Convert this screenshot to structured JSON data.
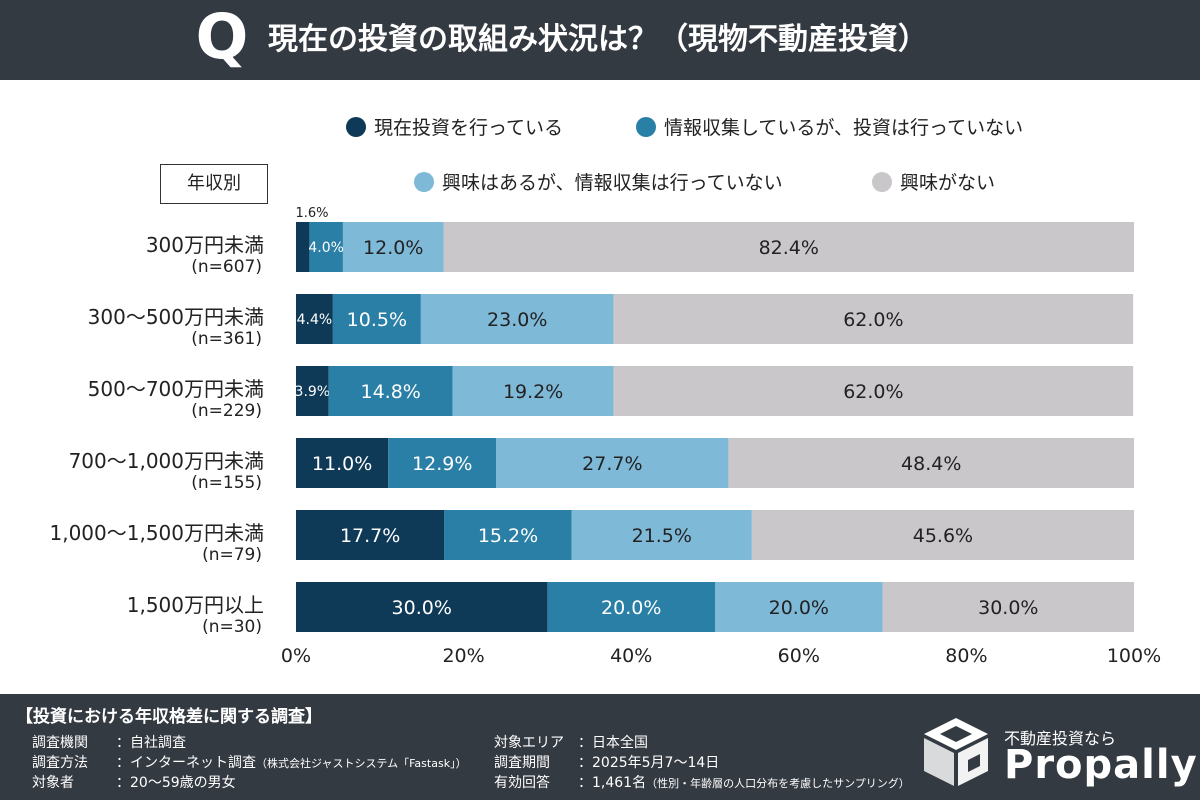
{
  "header": {
    "q_mark": "Q",
    "title": "現在の投資の取組み状況は？（現物不動産投資）"
  },
  "group_label": "年収別",
  "chart_data": {
    "type": "bar",
    "orientation": "horizontal",
    "stacked": true,
    "stacked_to": 100,
    "categories": [
      {
        "label": "300万円未満",
        "n": "(n=607)"
      },
      {
        "label": "300〜500万円未満",
        "n": "(n=361)"
      },
      {
        "label": "500〜700万円未満",
        "n": "(n=229)"
      },
      {
        "label": "700〜1,000万円未満",
        "n": "(n=155)"
      },
      {
        "label": "1,000〜1,500万円未満",
        "n": "(n=79)"
      },
      {
        "label": "1,500万円以上",
        "n": "(n=30)"
      }
    ],
    "series": [
      {
        "name": "現在投資を行っている",
        "color": "#0f3a57",
        "values": [
          1.6,
          4.4,
          3.9,
          11.0,
          17.7,
          30.0
        ],
        "labels": [
          "1.6%",
          "4.4%",
          "3.9%",
          "11.0%",
          "17.7%",
          "30.0%"
        ]
      },
      {
        "name": "情報収集しているが、投資は行っていない",
        "color": "#2a7fa6",
        "values": [
          4.0,
          10.5,
          14.8,
          12.9,
          15.2,
          20.0
        ],
        "labels": [
          "4.0%",
          "10.5%",
          "14.8%",
          "12.9%",
          "15.2%",
          "20.0%"
        ]
      },
      {
        "name": "興味はあるが、情報収集は行っていない",
        "color": "#7fb9d8",
        "values": [
          12.0,
          23.0,
          19.2,
          27.7,
          21.5,
          20.0
        ],
        "labels": [
          "12.0%",
          "23.0%",
          "19.2%",
          "27.7%",
          "21.5%",
          "20.0%"
        ]
      },
      {
        "name": "興味がない",
        "color": "#cac7cb",
        "values": [
          82.4,
          62.0,
          62.0,
          48.4,
          45.6,
          30.0
        ],
        "labels": [
          "82.4%",
          "62.0%",
          "62.0%",
          "48.4%",
          "45.6%",
          "30.0%"
        ]
      }
    ],
    "x_ticks": [
      "0%",
      "20%",
      "40%",
      "60%",
      "80%",
      "100%"
    ],
    "xlim": [
      0,
      100
    ],
    "legend_position": "top"
  },
  "footer": {
    "title": "【投資における年収格差に関する調査】",
    "left_rows": [
      {
        "key": "調査機関",
        "value": "：自社調査",
        "note": ""
      },
      {
        "key": "調査方法",
        "value": "：インターネット調査",
        "note": "（株式会社ジャストシステム「Fastask」）"
      },
      {
        "key": "対象者",
        "value": "：20〜59歳の男女",
        "note": ""
      }
    ],
    "right_rows": [
      {
        "key": "対象エリア",
        "value": "：日本全国",
        "note": ""
      },
      {
        "key": "調査期間",
        "value": "：2025年5月7〜14日",
        "note": ""
      },
      {
        "key": "有効回答",
        "value": "：1,461名",
        "note": "（性別・年齢層の人口分布を考慮したサンプリング）"
      }
    ]
  },
  "brand": {
    "tagline": "不動産投資なら",
    "name": "Propally"
  }
}
